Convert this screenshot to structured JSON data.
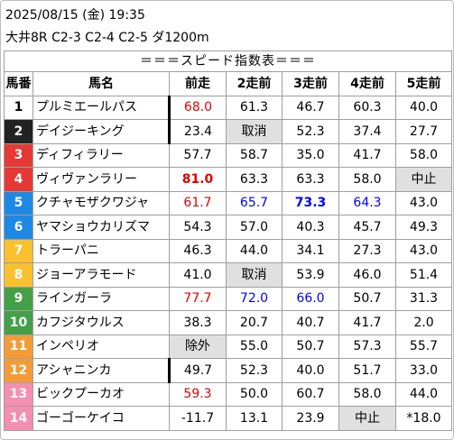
{
  "header": {
    "line1": "2025/08/15 (金) 19:35",
    "line2": "大井8R C2-3 C2-4 C2-5 ダ1200m"
  },
  "table": {
    "title": "＝＝＝スピード指数表＝＝＝",
    "columns": [
      "馬番",
      "馬名",
      "前走",
      "2走前",
      "3走前",
      "4走前",
      "5走前"
    ],
    "colors": {
      "red": "#e00000",
      "blue": "#0000ff",
      "gray_cell": "#e0e0e0"
    },
    "rows": [
      {
        "num": "1",
        "bg": "#ffffff",
        "fg": "#000000",
        "name": "プルミエールパス",
        "sep": true,
        "vals": [
          {
            "t": "68.0",
            "c": "red"
          },
          {
            "t": "61.3"
          },
          {
            "t": "46.7"
          },
          {
            "t": "60.3"
          },
          {
            "t": "40.0"
          }
        ]
      },
      {
        "num": "2",
        "bg": "#222222",
        "fg": "#ffffff",
        "name": "デイジーキング",
        "sep": true,
        "vals": [
          {
            "t": "23.4"
          },
          {
            "t": "取消",
            "g": true
          },
          {
            "t": "52.3"
          },
          {
            "t": "37.4"
          },
          {
            "t": "27.7"
          }
        ]
      },
      {
        "num": "3",
        "bg": "#e53935",
        "fg": "#ffffff",
        "name": "ディフィラリー",
        "vals": [
          {
            "t": "57.7"
          },
          {
            "t": "58.7"
          },
          {
            "t": "35.0"
          },
          {
            "t": "41.7"
          },
          {
            "t": "58.0"
          }
        ]
      },
      {
        "num": "4",
        "bg": "#e53935",
        "fg": "#ffffff",
        "name": "ヴィヴァンラリー",
        "vals": [
          {
            "t": "81.0",
            "c": "red",
            "b": true
          },
          {
            "t": "63.3"
          },
          {
            "t": "63.3"
          },
          {
            "t": "58.0"
          },
          {
            "t": "中止",
            "g": true
          }
        ]
      },
      {
        "num": "5",
        "bg": "#1e88e5",
        "fg": "#ffffff",
        "name": "クチャモザクワジャ",
        "vals": [
          {
            "t": "61.7",
            "c": "red"
          },
          {
            "t": "65.7",
            "c": "blue"
          },
          {
            "t": "73.3",
            "c": "blue",
            "b": true
          },
          {
            "t": "64.3",
            "c": "blue"
          },
          {
            "t": "43.0"
          }
        ]
      },
      {
        "num": "6",
        "bg": "#1e88e5",
        "fg": "#ffffff",
        "name": "ヤマショウカリズマ",
        "vals": [
          {
            "t": "54.3"
          },
          {
            "t": "57.0"
          },
          {
            "t": "40.3"
          },
          {
            "t": "45.7"
          },
          {
            "t": "49.3"
          }
        ]
      },
      {
        "num": "7",
        "bg": "#fbc02d",
        "fg": "#ffffff",
        "name": "トラーパニ",
        "vals": [
          {
            "t": "46.3"
          },
          {
            "t": "44.0"
          },
          {
            "t": "34.1"
          },
          {
            "t": "27.3"
          },
          {
            "t": "43.0"
          }
        ]
      },
      {
        "num": "8",
        "bg": "#fbc02d",
        "fg": "#ffffff",
        "name": "ジョーアラモード",
        "vals": [
          {
            "t": "41.0"
          },
          {
            "t": "取消",
            "g": true
          },
          {
            "t": "53.9"
          },
          {
            "t": "46.0"
          },
          {
            "t": "51.4"
          }
        ]
      },
      {
        "num": "9",
        "bg": "#43a047",
        "fg": "#ffffff",
        "name": "ラインガーラ",
        "vals": [
          {
            "t": "77.7",
            "c": "red"
          },
          {
            "t": "72.0",
            "c": "blue"
          },
          {
            "t": "66.0",
            "c": "blue"
          },
          {
            "t": "50.7"
          },
          {
            "t": "31.3"
          }
        ]
      },
      {
        "num": "10",
        "bg": "#43a047",
        "fg": "#ffffff",
        "name": "カフジタウルス",
        "vals": [
          {
            "t": "38.3"
          },
          {
            "t": "20.7"
          },
          {
            "t": "40.7"
          },
          {
            "t": "41.7"
          },
          {
            "t": "2.0"
          }
        ]
      },
      {
        "num": "11",
        "bg": "#f39c37",
        "fg": "#ffffff",
        "name": "インペリオ",
        "vals": [
          {
            "t": "除外",
            "g": true
          },
          {
            "t": "55.0"
          },
          {
            "t": "50.7"
          },
          {
            "t": "57.3"
          },
          {
            "t": "55.7"
          }
        ]
      },
      {
        "num": "12",
        "bg": "#f39c37",
        "fg": "#ffffff",
        "name": "アシャニンカ",
        "sep": true,
        "vals": [
          {
            "t": "49.7"
          },
          {
            "t": "52.3"
          },
          {
            "t": "40.0"
          },
          {
            "t": "51.7"
          },
          {
            "t": "33.0"
          }
        ]
      },
      {
        "num": "13",
        "bg": "#f48fb1",
        "fg": "#ffffff",
        "name": "ビックプーカオ",
        "vals": [
          {
            "t": "59.3",
            "c": "red"
          },
          {
            "t": "50.0"
          },
          {
            "t": "60.7"
          },
          {
            "t": "58.0"
          },
          {
            "t": "44.0"
          }
        ]
      },
      {
        "num": "14",
        "bg": "#f48fb1",
        "fg": "#ffffff",
        "name": "ゴーゴーケイコ",
        "vals": [
          {
            "t": "-11.7"
          },
          {
            "t": "13.1"
          },
          {
            "t": "23.9"
          },
          {
            "t": "中止",
            "g": true
          },
          {
            "t": "*18.0"
          }
        ]
      }
    ]
  }
}
